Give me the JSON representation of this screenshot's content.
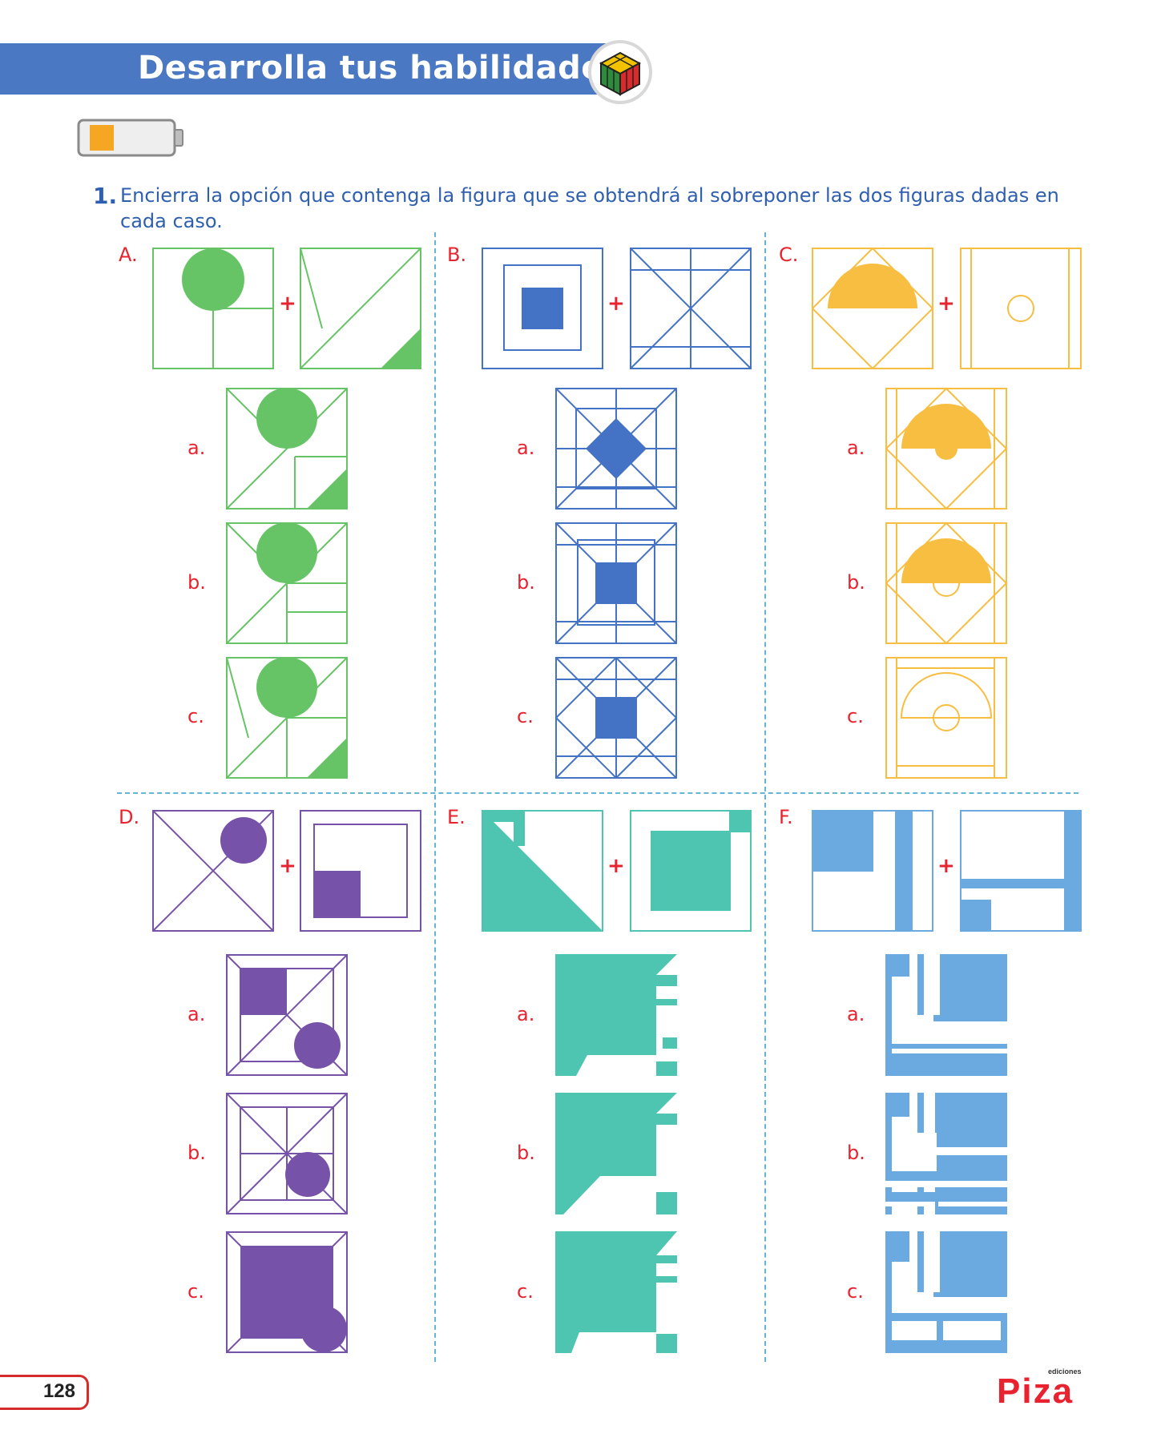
{
  "header": {
    "title": "Desarrolla tus habilidades",
    "accent_color": "#4a78c2"
  },
  "battery": {
    "level": 0.3,
    "color": "#f5a623"
  },
  "exercise": {
    "number": "1.",
    "instruction": "Encierra la opción que contenga la figura que se obtendrá al sobreponer las dos figuras dadas en cada caso."
  },
  "operator": "+",
  "problems": [
    {
      "label": "A.",
      "color": "#66c466",
      "options": [
        "a.",
        "b.",
        "c."
      ]
    },
    {
      "label": "B.",
      "color": "#4472c4",
      "options": [
        "a.",
        "b.",
        "c."
      ]
    },
    {
      "label": "C.",
      "color": "#f7be41",
      "options": [
        "a.",
        "b.",
        "c."
      ]
    },
    {
      "label": "D.",
      "color": "#7653a9",
      "options": [
        "a.",
        "b.",
        "c."
      ]
    },
    {
      "label": "E.",
      "color": "#4dc5b1",
      "options": [
        "a.",
        "b.",
        "c."
      ]
    },
    {
      "label": "F.",
      "color": "#6aaae0",
      "options": [
        "a.",
        "b.",
        "c."
      ]
    }
  ],
  "footer": {
    "page_number": "128",
    "publisher_small": "ediciones",
    "publisher": "Piza"
  }
}
